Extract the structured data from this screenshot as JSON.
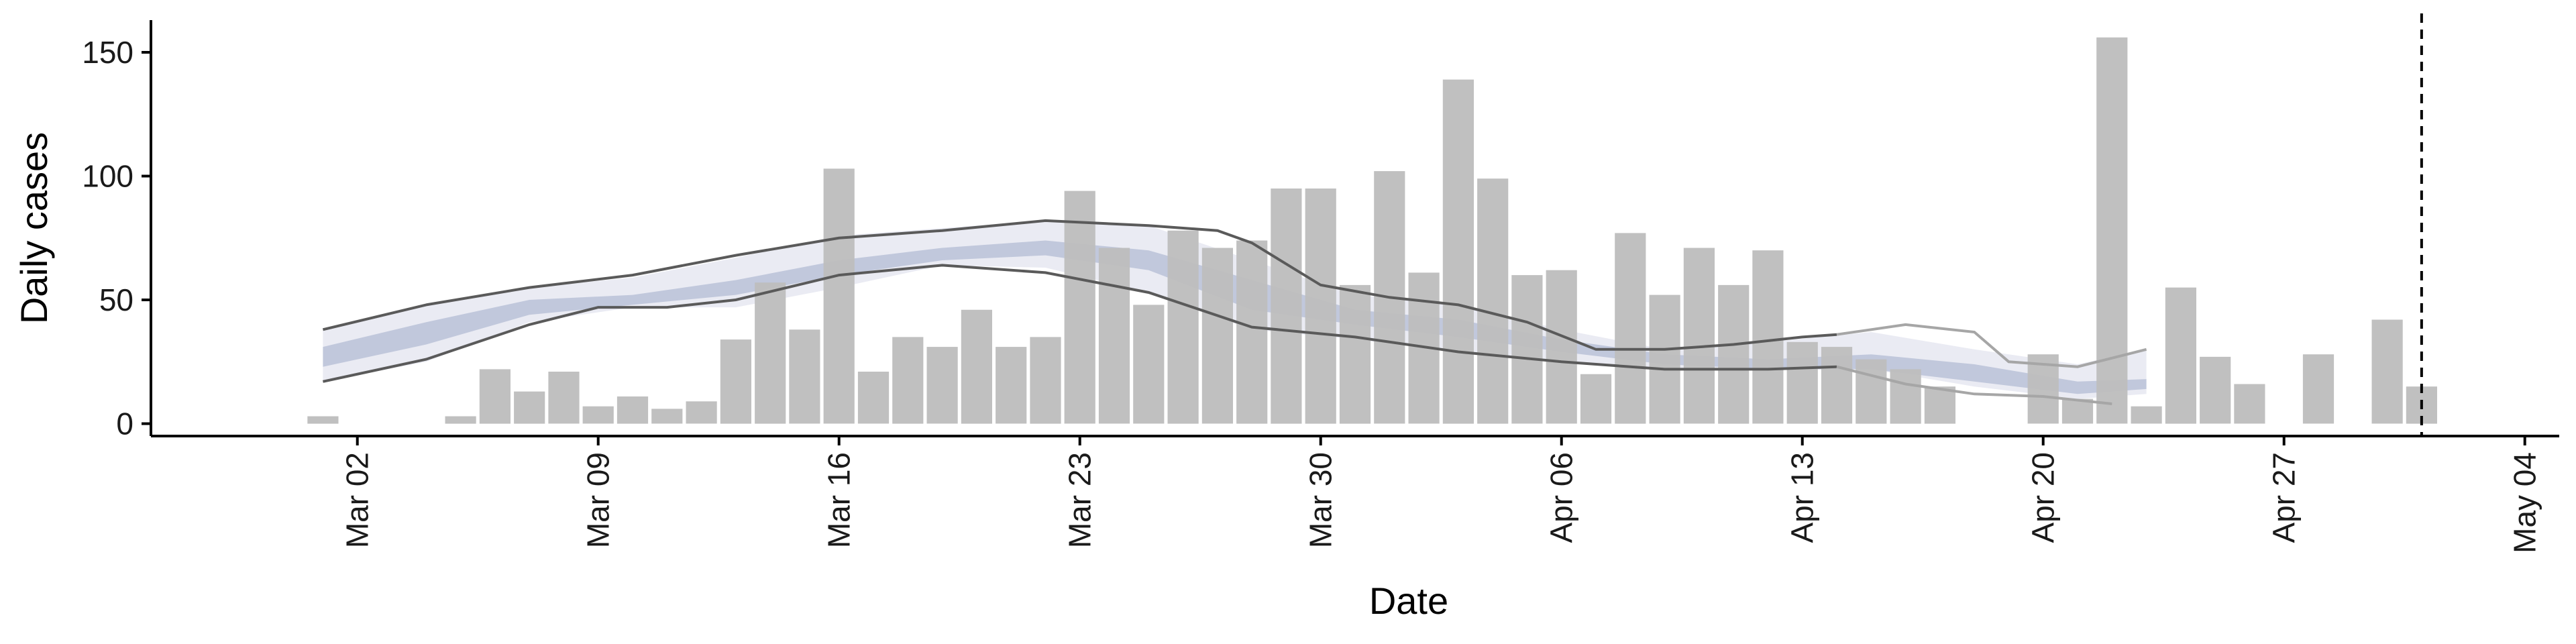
{
  "chart_data": {
    "type": "bar",
    "title": "",
    "xlabel": "Date",
    "ylabel": "Daily cases",
    "ylim": [
      -5,
      163
    ],
    "xlim": [
      "2020-02-25",
      "2020-05-05"
    ],
    "yticks": [
      0,
      50,
      100,
      150
    ],
    "xticks": [
      {
        "date": "2020-03-02",
        "label": "Mar 02"
      },
      {
        "date": "2020-03-09",
        "label": "Mar 09"
      },
      {
        "date": "2020-03-16",
        "label": "Mar 16"
      },
      {
        "date": "2020-03-23",
        "label": "Mar 23"
      },
      {
        "date": "2020-03-30",
        "label": "Mar 30"
      },
      {
        "date": "2020-04-06",
        "label": "Apr 06"
      },
      {
        "date": "2020-04-13",
        "label": "Apr 13"
      },
      {
        "date": "2020-04-20",
        "label": "Apr 20"
      },
      {
        "date": "2020-04-27",
        "label": "Apr 27"
      },
      {
        "date": "2020-05-04",
        "label": "May 04"
      }
    ],
    "grid": false,
    "colors": {
      "bars": "#bdbdbd",
      "outer_band": "#e6e8f1",
      "inner_band": "#b3bcd4",
      "bound_lines": "#5a5a5a",
      "faded_lines": "#a6a6a6",
      "vline": "#000000"
    },
    "reference_line_date": "2020-05-01",
    "bars": {
      "dates": [
        "2020-03-01",
        "2020-03-05",
        "2020-03-06",
        "2020-03-07",
        "2020-03-08",
        "2020-03-09",
        "2020-03-10",
        "2020-03-11",
        "2020-03-12",
        "2020-03-13",
        "2020-03-14",
        "2020-03-15",
        "2020-03-16",
        "2020-03-17",
        "2020-03-18",
        "2020-03-19",
        "2020-03-20",
        "2020-03-21",
        "2020-03-22",
        "2020-03-23",
        "2020-03-24",
        "2020-03-25",
        "2020-03-26",
        "2020-03-27",
        "2020-03-28",
        "2020-03-29",
        "2020-03-30",
        "2020-03-31",
        "2020-04-01",
        "2020-04-02",
        "2020-04-03",
        "2020-04-04",
        "2020-04-05",
        "2020-04-06",
        "2020-04-07",
        "2020-04-08",
        "2020-04-09",
        "2020-04-10",
        "2020-04-11",
        "2020-04-12",
        "2020-04-13",
        "2020-04-14",
        "2020-04-15",
        "2020-04-16",
        "2020-04-17",
        "2020-04-20",
        "2020-04-21",
        "2020-04-22",
        "2020-04-23",
        "2020-04-24",
        "2020-04-25",
        "2020-04-26",
        "2020-04-28",
        "2020-04-30",
        "2020-05-01"
      ],
      "values": [
        3,
        3,
        22,
        13,
        21,
        7,
        11,
        6,
        9,
        34,
        57,
        38,
        103,
        21,
        35,
        31,
        46,
        31,
        35,
        94,
        71,
        48,
        78,
        71,
        74,
        95,
        95,
        56,
        102,
        61,
        139,
        99,
        60,
        62,
        20,
        77,
        52,
        71,
        56,
        70,
        33,
        31,
        26,
        22,
        15,
        28,
        10,
        156,
        7,
        55,
        27,
        16,
        28,
        42,
        15
      ]
    },
    "band": {
      "dates": [
        "2020-03-01",
        "2020-03-04",
        "2020-03-07",
        "2020-03-10",
        "2020-03-13",
        "2020-03-16",
        "2020-03-19",
        "2020-03-22",
        "2020-03-25",
        "2020-03-28",
        "2020-03-31",
        "2020-04-03",
        "2020-04-06",
        "2020-04-09",
        "2020-04-12",
        "2020-04-15",
        "2020-04-18",
        "2020-04-21",
        "2020-04-23"
      ],
      "outer_upper": [
        38,
        48,
        55,
        59,
        67,
        76,
        79,
        82,
        80,
        66,
        52,
        48,
        38,
        30,
        33,
        37,
        30,
        24,
        30
      ],
      "outer_lower": [
        17,
        25,
        41,
        47,
        47,
        55,
        64,
        63,
        53,
        38,
        34,
        29,
        25,
        22,
        22,
        22,
        15,
        10,
        12
      ],
      "inner_upper": [
        31,
        41,
        50,
        52,
        58,
        66,
        71,
        74,
        70,
        58,
        46,
        42,
        34,
        28,
        26,
        28,
        24,
        17,
        18
      ],
      "inner_lower": [
        23,
        32,
        44,
        48,
        52,
        60,
        66,
        68,
        62,
        46,
        40,
        35,
        29,
        24,
        22,
        22,
        17,
        12,
        14
      ]
    },
    "lines": {
      "upper": {
        "dates": [
          "2020-03-01",
          "2020-03-04",
          "2020-03-07",
          "2020-03-10",
          "2020-03-13",
          "2020-03-16",
          "2020-03-19",
          "2020-03-22",
          "2020-03-25",
          "2020-03-27",
          "2020-03-28",
          "2020-03-30",
          "2020-04-01",
          "2020-04-03",
          "2020-04-05",
          "2020-04-07",
          "2020-04-09",
          "2020-04-11",
          "2020-04-13",
          "2020-04-14"
        ],
        "values": [
          38,
          48,
          55,
          60,
          68,
          75,
          78,
          82,
          80,
          78,
          73,
          56,
          51,
          48,
          41,
          30,
          30,
          32,
          35,
          36
        ]
      },
      "lower": {
        "dates": [
          "2020-03-01",
          "2020-03-04",
          "2020-03-07",
          "2020-03-09",
          "2020-03-11",
          "2020-03-13",
          "2020-03-16",
          "2020-03-19",
          "2020-03-22",
          "2020-03-25",
          "2020-03-28",
          "2020-03-31",
          "2020-04-03",
          "2020-04-06",
          "2020-04-09",
          "2020-04-12",
          "2020-04-14"
        ],
        "values": [
          17,
          26,
          40,
          47,
          47,
          50,
          60,
          64,
          61,
          53,
          39,
          35,
          29,
          25,
          22,
          22,
          23
        ]
      },
      "upper_faded": {
        "dates": [
          "2020-04-14",
          "2020-04-16",
          "2020-04-18",
          "2020-04-19",
          "2020-04-20",
          "2020-04-21",
          "2020-04-23"
        ],
        "values": [
          36,
          40,
          37,
          25,
          24,
          23,
          30
        ]
      },
      "lower_faded": {
        "dates": [
          "2020-04-14",
          "2020-04-16",
          "2020-04-18",
          "2020-04-20",
          "2020-04-22"
        ],
        "values": [
          23,
          16,
          12,
          11,
          8
        ]
      }
    }
  }
}
